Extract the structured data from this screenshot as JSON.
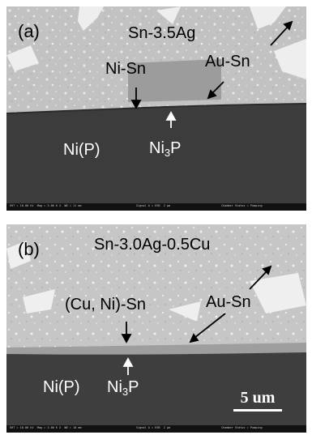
{
  "panel_a": {
    "label": "(a)",
    "alloy": "Sn-3.5Ag",
    "imc": "Ni-Sn",
    "au_sn": "Au-Sn",
    "substrate": "Ni(P)",
    "ni3p": {
      "base": "Ni",
      "sub": "3",
      "tail": "P"
    }
  },
  "panel_b": {
    "label": "(b)",
    "alloy": "Sn-3.0Ag-0.5Cu",
    "imc": "(Cu, Ni)-Sn",
    "au_sn": "Au-Sn",
    "substrate": "Ni(P)",
    "ni3p": {
      "base": "Ni",
      "sub": "3",
      "tail": "P"
    }
  },
  "scale_bar": {
    "label": "5 um"
  },
  "colors": {
    "solder": "#bdbdbd",
    "imc_layer": "#9a9a9a",
    "substrate": "#3c3c3c",
    "arrow": "#000000"
  }
}
